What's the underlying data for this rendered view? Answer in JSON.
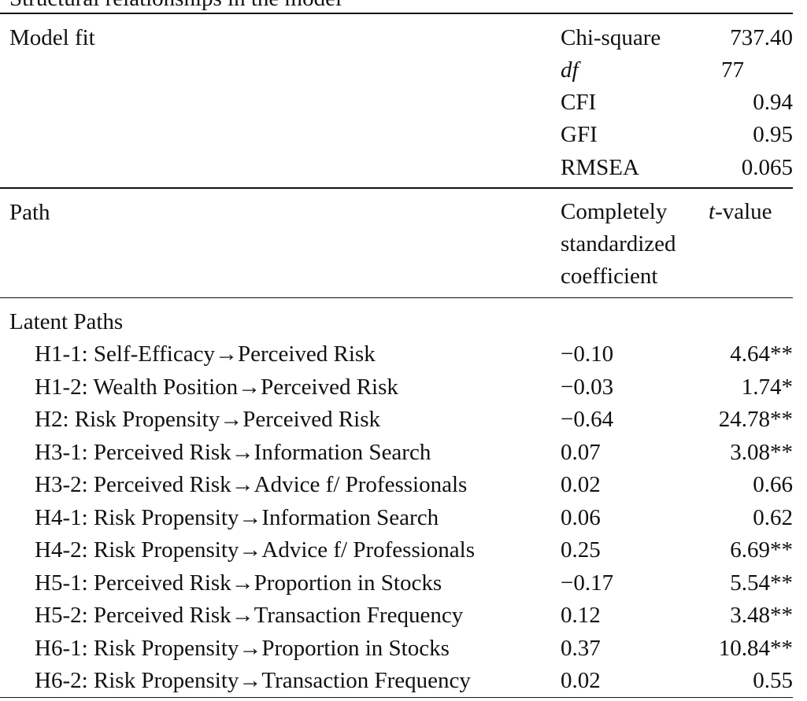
{
  "caption": "Structural relationships in the model",
  "model_fit": {
    "label": "Model fit",
    "stats": [
      {
        "name": "Chi-square",
        "value": "737.40",
        "italic": false
      },
      {
        "name": "df",
        "value": "77",
        "italic": true
      },
      {
        "name": "CFI",
        "value": "0.94",
        "italic": false
      },
      {
        "name": "GFI",
        "value": "0.95",
        "italic": false
      },
      {
        "name": "RMSEA",
        "value": "0.065",
        "italic": false
      }
    ]
  },
  "header": {
    "path_label": "Path",
    "coef_lines": [
      "Completely",
      "standardized",
      "coefficient"
    ],
    "t_prefix": "t",
    "t_suffix": "-value"
  },
  "section_label": "Latent Paths",
  "paths": [
    {
      "label": "H1-1: Self-Efficacy→Perceived Risk",
      "coef": "−0.10",
      "t": "4.64**"
    },
    {
      "label": "H1-2: Wealth Position→Perceived Risk",
      "coef": "−0.03",
      "t": "1.74*"
    },
    {
      "label": "H2: Risk Propensity→Perceived Risk",
      "coef": "−0.64",
      "t": "24.78**"
    },
    {
      "label": "H3-1: Perceived Risk→Information Search",
      "coef": "0.07",
      "t": "3.08**"
    },
    {
      "label": "H3-2: Perceived Risk→Advice f/ Professionals",
      "coef": "0.02",
      "t": "0.66"
    },
    {
      "label": "H4-1: Risk Propensity→Information Search",
      "coef": "0.06",
      "t": "0.62"
    },
    {
      "label": "H4-2: Risk Propensity→Advice f/ Professionals",
      "coef": "0.25",
      "t": "6.69**"
    },
    {
      "label": "H5-1: Perceived Risk→Proportion in Stocks",
      "coef": "−0.17",
      "t": "5.54**"
    },
    {
      "label": "H5-2: Perceived Risk→Transaction Frequency",
      "coef": "0.12",
      "t": "3.48**"
    },
    {
      "label": "H6-1: Risk Propensity→Proportion in Stocks",
      "coef": "0.37",
      "t": "10.84**"
    },
    {
      "label": "H6-2: Risk Propensity→Transaction Frequency",
      "coef": "0.02",
      "t": "0.55"
    }
  ]
}
